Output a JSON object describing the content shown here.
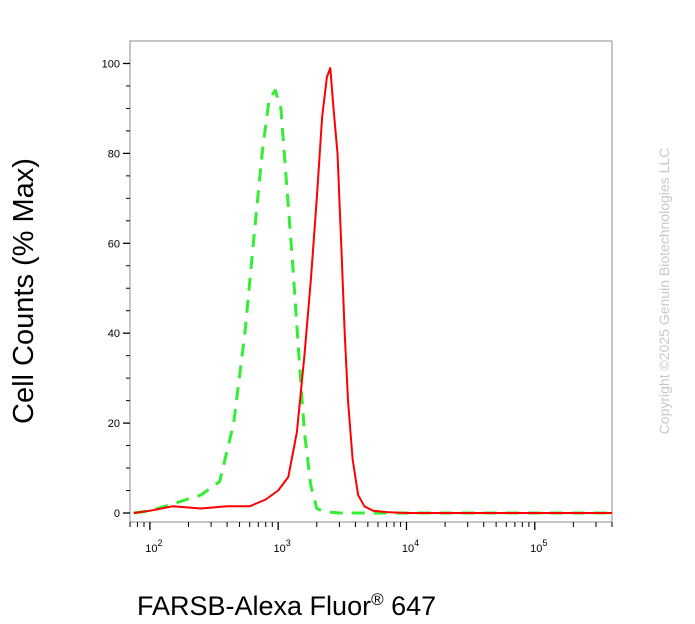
{
  "chart_data": {
    "type": "line",
    "xlabel": "FARSB-Alexa Fluor",
    "xlabel_sup": "®",
    "xlabel_tail": " 647",
    "ylabel": "Cell Counts (% Max)",
    "x_scale": "log",
    "xlim": [
      70,
      400000
    ],
    "ylim": [
      -2,
      105
    ],
    "yticks": [
      {
        "value": 0,
        "label": "0"
      },
      {
        "value": 20,
        "label": "20"
      },
      {
        "value": 40,
        "label": "40"
      },
      {
        "value": 60,
        "label": "60"
      },
      {
        "value": 80,
        "label": "80"
      },
      {
        "value": 100,
        "label": "100"
      }
    ],
    "xticks": [
      {
        "value": 100,
        "base": "10",
        "exp": "2"
      },
      {
        "value": 1000,
        "base": "10",
        "exp": "3"
      },
      {
        "value": 10000,
        "base": "10",
        "exp": "4"
      },
      {
        "value": 100000,
        "base": "10",
        "exp": "5"
      }
    ],
    "grid": false,
    "legend": "none",
    "series": [
      {
        "color": "#33ee33",
        "style": "dashed",
        "x": [
          75,
          100,
          150,
          250,
          350,
          450,
          550,
          650,
          750,
          850,
          950,
          1050,
          1150,
          1300,
          1450,
          1600,
          1800,
          2000,
          2300,
          3000,
          5000,
          20000,
          400000
        ],
        "y": [
          0,
          0.5,
          2,
          4,
          7,
          20,
          40,
          62,
          80,
          92,
          94,
          90,
          75,
          55,
          35,
          18,
          6,
          1,
          0.3,
          0,
          0,
          0,
          0
        ]
      },
      {
        "color": "#ff0000",
        "style": "solid",
        "x": [
          75,
          100,
          150,
          250,
          400,
          600,
          800,
          1000,
          1200,
          1400,
          1600,
          1800,
          2000,
          2200,
          2400,
          2550,
          2700,
          2900,
          3100,
          3300,
          3500,
          3800,
          4200,
          4700,
          5500,
          7000,
          10000,
          50000,
          400000
        ],
        "y": [
          0,
          0.5,
          1.5,
          1,
          1.5,
          1.5,
          3,
          5,
          8,
          18,
          35,
          52,
          70,
          88,
          97,
          99,
          90,
          80,
          60,
          40,
          25,
          12,
          4,
          1.5,
          0.5,
          0.2,
          0,
          0,
          0
        ]
      }
    ]
  },
  "watermark": "Copyright ©2025 Genuin Biotechnologies LLC"
}
